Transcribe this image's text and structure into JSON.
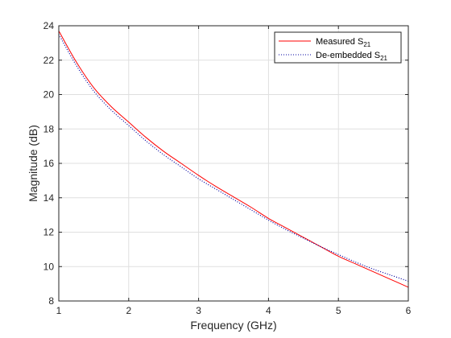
{
  "chart_data": {
    "type": "line",
    "title": "",
    "xlabel": "Frequency (GHz)",
    "ylabel": "Magnitude (dB)",
    "xlim": [
      1,
      6
    ],
    "ylim": [
      8,
      24
    ],
    "xticks": [
      1,
      2,
      3,
      4,
      5,
      6
    ],
    "yticks": [
      8,
      10,
      12,
      14,
      16,
      18,
      20,
      22,
      24
    ],
    "grid": true,
    "legend_position": "top-right",
    "series": [
      {
        "name": "Measured S21",
        "legend_base": "Measured  S",
        "legend_sub": "21",
        "color": "#ff0000",
        "style": "solid",
        "x": [
          1,
          1.25,
          1.5,
          1.75,
          2,
          2.25,
          2.5,
          2.75,
          3,
          3.25,
          3.5,
          3.75,
          4,
          4.25,
          4.5,
          4.75,
          5,
          5.25,
          5.5,
          5.75,
          6
        ],
        "y": [
          23.7,
          21.9,
          20.4,
          19.3,
          18.4,
          17.5,
          16.7,
          16.0,
          15.3,
          14.65,
          14.05,
          13.45,
          12.8,
          12.25,
          11.7,
          11.15,
          10.6,
          10.15,
          9.7,
          9.25,
          8.8
        ]
      },
      {
        "name": "De-embedded S21",
        "legend_base": "De-embedded  S",
        "legend_sub": "21",
        "color": "#0000a0",
        "style": "dotted",
        "x": [
          1,
          1.25,
          1.5,
          1.75,
          2,
          2.25,
          2.5,
          2.75,
          3,
          3.25,
          3.5,
          3.75,
          4,
          4.25,
          4.5,
          4.75,
          5,
          5.25,
          5.5,
          5.75,
          6
        ],
        "y": [
          23.5,
          21.7,
          20.2,
          19.1,
          18.2,
          17.3,
          16.5,
          15.8,
          15.1,
          14.5,
          13.9,
          13.3,
          12.7,
          12.15,
          11.65,
          11.15,
          10.7,
          10.25,
          9.85,
          9.5,
          9.15
        ]
      }
    ]
  }
}
